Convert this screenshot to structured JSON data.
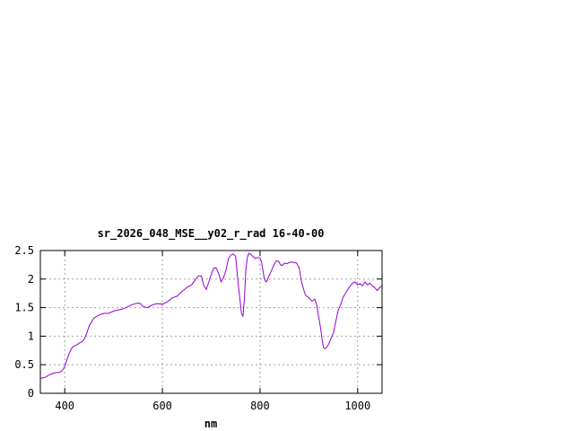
{
  "chart_data": {
    "type": "line",
    "title": "sr_2026_048_MSE__y02_r_rad 16-40-00",
    "xlabel": "nm",
    "ylabel": "",
    "xlim": [
      350,
      1050
    ],
    "ylim": [
      0,
      2.5
    ],
    "xticks": [
      400,
      600,
      800,
      1000
    ],
    "yticks": [
      0,
      0.5,
      1,
      1.5,
      2,
      2.5
    ],
    "xtick_labels": [
      "400",
      "600",
      "800",
      "1000"
    ],
    "ytick_labels": [
      "0",
      "0.5",
      "1",
      "1.5",
      "2",
      "2.5"
    ],
    "grid": true,
    "line_color": "#9400d3",
    "series": [
      {
        "x": [
          350,
          360,
          370,
          380,
          390,
          395,
          400,
          405,
          410,
          415,
          420,
          425,
          430,
          435,
          440,
          445,
          450,
          460,
          470,
          480,
          490,
          500,
          510,
          520,
          530,
          540,
          550,
          555,
          560,
          570,
          580,
          590,
          600,
          610,
          620,
          630,
          640,
          650,
          660,
          670,
          675,
          680,
          685,
          690,
          695,
          700,
          705,
          710,
          715,
          720,
          725,
          730,
          735,
          740,
          745,
          750,
          755,
          760,
          762,
          765,
          768,
          771,
          774,
          777,
          780,
          785,
          790,
          795,
          800,
          803,
          806,
          809,
          812,
          815,
          818,
          822,
          826,
          830,
          834,
          838,
          842,
          846,
          850,
          855,
          860,
          865,
          870,
          875,
          880,
          885,
          890,
          893,
          896,
          899,
          902,
          905,
          908,
          912,
          916,
          920,
          924,
          927,
          930,
          933,
          936,
          940,
          945,
          950,
          955,
          960,
          965,
          970,
          975,
          980,
          985,
          990,
          995,
          1000,
          1005,
          1010,
          1015,
          1020,
          1025,
          1030,
          1035,
          1040,
          1045,
          1050
        ],
        "values": [
          0.26,
          0.28,
          0.33,
          0.36,
          0.37,
          0.4,
          0.47,
          0.6,
          0.72,
          0.8,
          0.83,
          0.85,
          0.88,
          0.9,
          0.95,
          1.05,
          1.18,
          1.32,
          1.37,
          1.4,
          1.4,
          1.44,
          1.46,
          1.48,
          1.52,
          1.56,
          1.58,
          1.57,
          1.52,
          1.5,
          1.55,
          1.57,
          1.56,
          1.6,
          1.67,
          1.7,
          1.78,
          1.85,
          1.9,
          2.02,
          2.06,
          2.05,
          1.88,
          1.82,
          1.95,
          2.08,
          2.19,
          2.2,
          2.1,
          1.95,
          2.02,
          2.15,
          2.35,
          2.42,
          2.44,
          2.4,
          1.95,
          1.55,
          1.4,
          1.35,
          1.65,
          2.15,
          2.38,
          2.45,
          2.44,
          2.4,
          2.36,
          2.38,
          2.37,
          2.3,
          2.15,
          2.0,
          1.95,
          1.98,
          2.05,
          2.12,
          2.2,
          2.28,
          2.32,
          2.31,
          2.25,
          2.24,
          2.28,
          2.27,
          2.29,
          2.3,
          2.29,
          2.28,
          2.2,
          1.95,
          1.8,
          1.72,
          1.7,
          1.68,
          1.66,
          1.62,
          1.62,
          1.65,
          1.55,
          1.35,
          1.15,
          0.95,
          0.8,
          0.78,
          0.8,
          0.85,
          0.95,
          1.05,
          1.25,
          1.45,
          1.55,
          1.68,
          1.75,
          1.82,
          1.88,
          1.93,
          1.95,
          1.9,
          1.92,
          1.88,
          1.95,
          1.9,
          1.93,
          1.88,
          1.85,
          1.8,
          1.85,
          1.88
        ]
      }
    ]
  }
}
